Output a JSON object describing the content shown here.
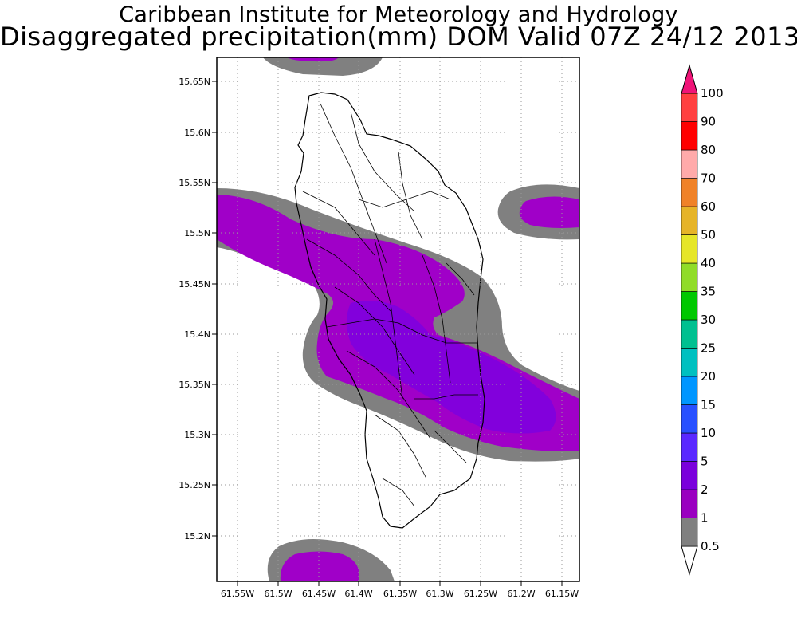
{
  "title_line1": "Caribbean Institute for Meteorology and Hydrology",
  "title_line2": "Disaggregated precipitation(mm) DOM Valid 07Z 24/12 2013",
  "lat_ticks": [
    "15.65N",
    "15.6N",
    "15.55N",
    "15.5N",
    "15.45N",
    "15.4N",
    "15.35N",
    "15.3N",
    "15.25N",
    "15.2N"
  ],
  "lon_ticks": [
    "61.55W",
    "61.5W",
    "61.45W",
    "61.4W",
    "61.35W",
    "61.3W",
    "61.25W",
    "61.2W",
    "61.15W"
  ],
  "colorbar": {
    "labels": [
      "0.5",
      "1",
      "2",
      "5",
      "10",
      "15",
      "20",
      "25",
      "30",
      "35",
      "40",
      "50",
      "60",
      "70",
      "80",
      "90",
      "100"
    ],
    "colors": [
      "#808080",
      "#9a00c0",
      "#7a00dc",
      "#5a28ff",
      "#2850ff",
      "#0096ff",
      "#00c0c0",
      "#00c090",
      "#00c800",
      "#90dc28",
      "#e6e628",
      "#e6b428",
      "#f08228",
      "#ffaaaa",
      "#ff0000",
      "#ff4040",
      "#f01478"
    ]
  },
  "palette": {
    "gray": "#808080",
    "purple": "#a000c8",
    "violet": "#8200dc",
    "coast": "#000000"
  }
}
